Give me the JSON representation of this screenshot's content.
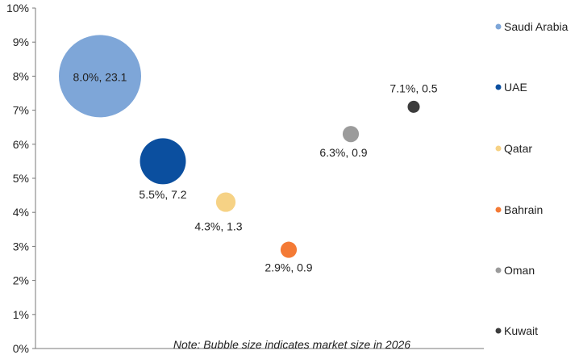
{
  "chart_data": {
    "type": "scatter",
    "bubble": true,
    "ylim": [
      0,
      10
    ],
    "y_ticks": [
      "0%",
      "1%",
      "2%",
      "3%",
      "4%",
      "5%",
      "6%",
      "7%",
      "8%",
      "9%",
      "10%"
    ],
    "grid": false,
    "legend_position": "right",
    "note": "Note: Bubble size indicates market size in 2026",
    "points": [
      {
        "name": "Saudi Arabia",
        "y": 8.0,
        "size": 23.1,
        "label": "8.0%, 23.1",
        "color": "#7ea6d8"
      },
      {
        "name": "UAE",
        "y": 5.5,
        "size": 7.2,
        "label": "5.5%, 7.2",
        "color": "#0b4f9f"
      },
      {
        "name": "Qatar",
        "y": 4.3,
        "size": 1.3,
        "label": "4.3%, 1.3",
        "color": "#f6d285"
      },
      {
        "name": "Bahrain",
        "y": 2.9,
        "size": 0.9,
        "label": "2.9%, 0.9",
        "color": "#f47a35"
      },
      {
        "name": "Oman",
        "y": 6.3,
        "size": 0.9,
        "label": "6.3%, 0.9",
        "color": "#9b9b9b"
      },
      {
        "name": "Kuwait",
        "y": 7.1,
        "size": 0.5,
        "label": "7.1%, 0.5",
        "color": "#3c3c3c"
      }
    ]
  }
}
